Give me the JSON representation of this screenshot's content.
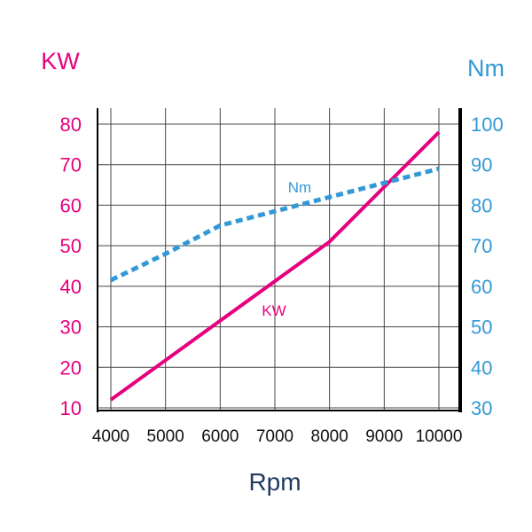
{
  "chart_data": {
    "type": "line",
    "xlabel": "Rpm",
    "ylabel_left": "KW",
    "ylabel_right": "Nm",
    "x_ticks": [
      "4000",
      "5000",
      "6000",
      "7000",
      "8000",
      "9000",
      "10000"
    ],
    "y_left_ticks": [
      "10",
      "20",
      "30",
      "40",
      "50",
      "60",
      "70",
      "80"
    ],
    "y_right_ticks": [
      "30",
      "40",
      "50",
      "60",
      "70",
      "80",
      "90",
      "100"
    ],
    "xlim": [
      4000,
      10000
    ],
    "ylim_left": [
      10,
      80
    ],
    "ylim_right": [
      30,
      100
    ],
    "grid": true,
    "series": [
      {
        "name": "KW",
        "axis": "left",
        "color": "#e6007e",
        "style": "solid",
        "x": [
          4000,
          8000,
          10000
        ],
        "values": [
          12,
          51,
          78
        ]
      },
      {
        "name": "Nm",
        "axis": "right",
        "color": "#3399d6",
        "style": "dashed",
        "x": [
          4000,
          5000,
          6000,
          7000,
          8000,
          9000,
          10000
        ],
        "values": [
          61.5,
          68,
          75,
          78.5,
          82,
          85.5,
          89
        ]
      }
    ],
    "colors": {
      "left_axis": "#e6007e",
      "right_axis": "#3399d6",
      "x_title": "#1f3a5f",
      "tick_x": "#111111"
    }
  }
}
